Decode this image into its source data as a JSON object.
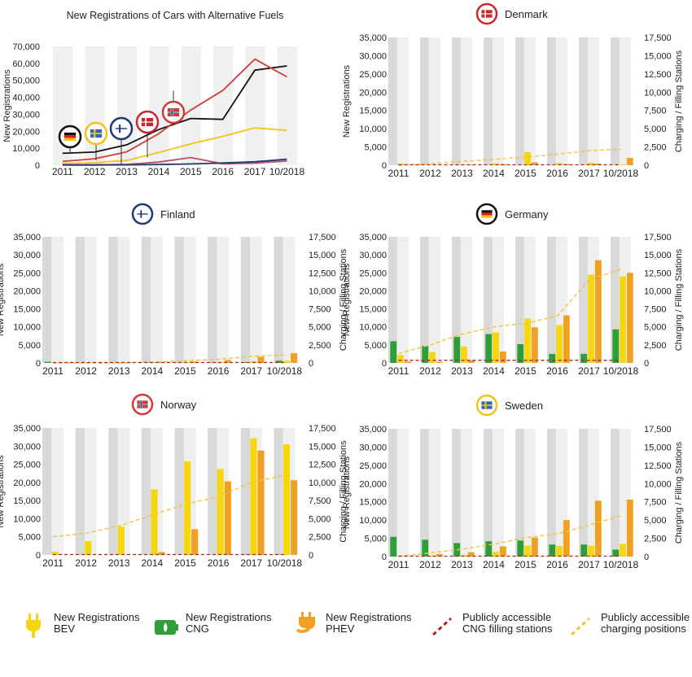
{
  "colors": {
    "bev": "#f6d70f",
    "cng": "#2e9e36",
    "phev": "#f0a023",
    "cng_station": "#b0231f",
    "charging": "#f2c43a",
    "denmark": "#c8282e",
    "finland": "#1e3a70",
    "germany": "#111111",
    "sweden": "#f4c318",
    "norway": "#d23a3a",
    "band_dark": "#d9d9d9",
    "band_light": "#efefef"
  },
  "chart_data": [
    {
      "id": "overview",
      "type": "line",
      "title": "New Registrations of Cars with Alternative Fuels",
      "ylabel": "New Registrations",
      "x": [
        "2011",
        "2012",
        "2013",
        "2014",
        "2015",
        "2016",
        "2017",
        "10/2018"
      ],
      "ylim": [
        0,
        70000
      ],
      "yticks": [
        "0",
        "10,000",
        "20,000",
        "30,000",
        "40,000",
        "50,000",
        "60,000",
        "70,000"
      ],
      "series": [
        {
          "name": "Germany",
          "color": "#111111",
          "values": [
            7000,
            7700,
            12000,
            21000,
            27500,
            27000,
            56000,
            58500
          ]
        },
        {
          "name": "Norway",
          "color": "#d23a3a",
          "values": [
            2200,
            3800,
            7800,
            18500,
            32500,
            44000,
            62500,
            52000
          ]
        },
        {
          "name": "Sweden",
          "color": "#f4c318",
          "values": [
            1000,
            1500,
            2800,
            7500,
            12500,
            17000,
            22000,
            20500
          ]
        },
        {
          "name": "Denmark",
          "color": "#c44d6a",
          "values": [
            300,
            300,
            500,
            1800,
            4500,
            800,
            1200,
            2500
          ]
        },
        {
          "name": "Finland",
          "color": "#1e3a70",
          "values": [
            100,
            100,
            200,
            400,
            700,
            1300,
            2000,
            3500
          ]
        }
      ],
      "flags": [
        "Germany",
        "Sweden",
        "Finland",
        "Denmark",
        "Norway"
      ]
    },
    {
      "id": "denmark",
      "type": "bar",
      "title": "Denmark",
      "flag": "Denmark",
      "ylabel": "New Registrations",
      "y2label": "Charging / Filling Stations",
      "categories": [
        "2011",
        "2012",
        "2013",
        "2014",
        "2015",
        "2016",
        "2017",
        "10/2018"
      ],
      "ylim": [
        0,
        35000
      ],
      "y2lim": [
        0,
        17500
      ],
      "yticks": [
        "0",
        "5,000",
        "10,000",
        "15,000",
        "20,000",
        "25,000",
        "30,000",
        "35,000"
      ],
      "y2ticks": [
        "0",
        "2,500",
        "5,000",
        "7,500",
        "10,000",
        "12,500",
        "15,000",
        "17,500"
      ],
      "bev": [
        400,
        100,
        100,
        500,
        3600,
        600,
        700,
        200
      ],
      "cng": [
        0,
        0,
        0,
        0,
        0,
        0,
        0,
        0
      ],
      "phev": [
        0,
        0,
        100,
        300,
        800,
        300,
        400,
        2000
      ],
      "charging": [
        0,
        200,
        500,
        800,
        1100,
        1500,
        2000,
        2200
      ],
      "cng_stations": [
        0,
        0,
        0,
        0,
        0,
        0,
        0,
        0
      ]
    },
    {
      "id": "finland",
      "type": "bar",
      "title": "Finland",
      "flag": "Finland",
      "ylabel": "New Registrations",
      "y2label": "Charging / Filling Stations",
      "categories": [
        "2011",
        "2012",
        "2013",
        "2014",
        "2015",
        "2016",
        "2017",
        "10/2018"
      ],
      "ylim": [
        0,
        35000
      ],
      "y2lim": [
        0,
        17500
      ],
      "yticks": [
        "0",
        "5,000",
        "10,000",
        "15,000",
        "20,000",
        "25,000",
        "30,000",
        "35,000"
      ],
      "y2ticks": [
        "0",
        "2,500",
        "5,000",
        "7,500",
        "10,000",
        "12,500",
        "15,000",
        "17,500"
      ],
      "bev": [
        0,
        0,
        200,
        100,
        200,
        300,
        500,
        600
      ],
      "cng": [
        300,
        100,
        100,
        100,
        100,
        100,
        200,
        600
      ],
      "phev": [
        0,
        0,
        100,
        200,
        400,
        800,
        1700,
        2700
      ],
      "charging": [
        0,
        0,
        0,
        100,
        300,
        500,
        900,
        1100
      ],
      "cng_stations": [
        0,
        0,
        0,
        0,
        0,
        0,
        0,
        0
      ]
    },
    {
      "id": "germany",
      "type": "bar",
      "title": "Germany",
      "flag": "Germany",
      "ylabel": "New Registrations",
      "y2label": "Charging / Filling Stations",
      "categories": [
        "2011",
        "2012",
        "2013",
        "2014",
        "2015",
        "2016",
        "2017",
        "10/2018"
      ],
      "ylim": [
        0,
        35000
      ],
      "y2lim": [
        0,
        17500
      ],
      "yticks": [
        "0",
        "5,000",
        "10,000",
        "15,000",
        "20,000",
        "25,000",
        "30,000",
        "35,000"
      ],
      "y2ticks": [
        "0",
        "2,500",
        "5,000",
        "7,500",
        "10,000",
        "12,500",
        "15,000",
        "17,500"
      ],
      "bev": [
        2200,
        3000,
        4500,
        8500,
        12300,
        10500,
        24500,
        24000
      ],
      "cng": [
        6000,
        4700,
        7200,
        8000,
        5200,
        2500,
        2500,
        9300
      ],
      "phev": [
        400,
        300,
        700,
        3200,
        9900,
        13200,
        28500,
        25000
      ],
      "charging": [
        1300,
        2500,
        4000,
        5000,
        5500,
        6500,
        11500,
        13000
      ],
      "cng_stations": [
        300,
        300,
        300,
        300,
        300,
        300,
        300,
        300
      ]
    },
    {
      "id": "norway",
      "type": "bar",
      "title": "Norway",
      "flag": "Norway",
      "ylabel": "New Registrations",
      "y2label": "Charging / Filling Stations",
      "categories": [
        "2011",
        "2012",
        "2013",
        "2014",
        "2015",
        "2016",
        "2017",
        "10/2018"
      ],
      "ylim": [
        0,
        35000
      ],
      "y2lim": [
        0,
        17500
      ],
      "yticks": [
        "0",
        "5,000",
        "10,000",
        "15,000",
        "20,000",
        "25,000",
        "30,000",
        "35,000"
      ],
      "y2ticks": [
        "0",
        "2,500",
        "5,000",
        "7,500",
        "10,000",
        "12,500",
        "15,000",
        "17,500"
      ],
      "bev": [
        900,
        3800,
        7800,
        18100,
        25800,
        23700,
        32200,
        30500
      ],
      "cng": [
        0,
        0,
        0,
        0,
        0,
        0,
        100,
        100
      ],
      "phev": [
        0,
        0,
        0,
        800,
        7100,
        20300,
        28800,
        20600
      ],
      "charging": [
        2500,
        3000,
        4000,
        5500,
        7000,
        8000,
        10000,
        11000
      ],
      "cng_stations": [
        0,
        0,
        0,
        0,
        0,
        0,
        0,
        0
      ]
    },
    {
      "id": "sweden",
      "type": "bar",
      "title": "Sweden",
      "flag": "Sweden",
      "ylabel": "New Registrations",
      "y2label": "Charging / Filling Stations",
      "categories": [
        "2011",
        "2012",
        "2013",
        "2014",
        "2015",
        "2016",
        "2017",
        "10/2018"
      ],
      "ylim": [
        0,
        35000
      ],
      "y2lim": [
        0,
        17500
      ],
      "yticks": [
        "0",
        "5,000",
        "10,000",
        "15,000",
        "20,000",
        "25,000",
        "30,000",
        "35,000"
      ],
      "y2ticks": [
        "0",
        "2,500",
        "5,000",
        "7,500",
        "10,000",
        "12,500",
        "15,000",
        "17,500"
      ],
      "bev": [
        200,
        300,
        400,
        1300,
        3000,
        2900,
        3000,
        3500
      ],
      "cng": [
        5400,
        4600,
        3700,
        4200,
        4400,
        3300,
        3300,
        1900
      ],
      "phev": [
        0,
        700,
        1200,
        2800,
        5200,
        10000,
        15300,
        15600
      ],
      "charging": [
        0,
        500,
        1000,
        1700,
        2600,
        3100,
        4300,
        5600
      ],
      "cng_stations": [
        0,
        0,
        0,
        0,
        0,
        0,
        0,
        0
      ]
    }
  ],
  "legend": [
    {
      "icon": "bev-plug-icon",
      "line1": "New Registrations",
      "line2": "BEV"
    },
    {
      "icon": "cng-battery-icon",
      "line1": "New Registrations",
      "line2": "CNG"
    },
    {
      "icon": "phev-plug-icon",
      "line1": "New Registrations",
      "line2": "PHEV"
    },
    {
      "icon": "cng-station-line-icon",
      "line1": "Publicly accessible",
      "line2": "CNG filling stations"
    },
    {
      "icon": "charging-line-icon",
      "line1": "Publicly accessible",
      "line2": "charging positions"
    }
  ]
}
